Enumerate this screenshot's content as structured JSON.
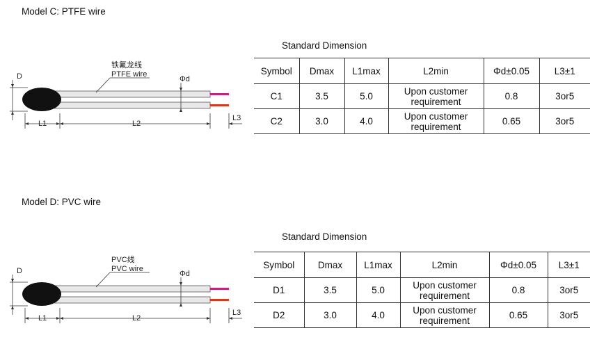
{
  "sections": [
    {
      "title": "Model C: PTFE wire",
      "diagram": {
        "dimension_d": "D",
        "wire_label_cn": "铁氟龙线",
        "wire_label_en": "PTFE wire",
        "phi_d": "Φd",
        "l1": "L1",
        "l2": "L2",
        "l3": "L3"
      },
      "table": {
        "caption": "Standard Dimension",
        "header": [
          "Symbol",
          "Dmax",
          "L1max",
          "L2min",
          "Φd±0.05",
          "L3±1"
        ],
        "rows": [
          [
            "C1",
            "3.5",
            "5.0",
            "Upon customer requirement",
            "0.8",
            "3or5"
          ],
          [
            "C2",
            "3.0",
            "4.0",
            "Upon customer requirement",
            "0.65",
            "3or5"
          ]
        ]
      }
    },
    {
      "title": "Model D: PVC wire",
      "diagram": {
        "dimension_d": "D",
        "wire_label_cn": "PVC线",
        "wire_label_en": "PVC wire",
        "phi_d": "Φd",
        "l1": "L1",
        "l2": "L2",
        "l3": "L3"
      },
      "table": {
        "caption": "Standard Dimension",
        "header": [
          "Symbol",
          "Dmax",
          "L1max",
          "L2min",
          "Φd±0.05",
          "L3±1"
        ],
        "rows": [
          [
            "D1",
            "3.5",
            "5.0",
            "Upon customer requirement",
            "0.8",
            "3or5"
          ],
          [
            "D2",
            "3.0",
            "4.0",
            "Upon customer requirement",
            "0.65",
            "3or5"
          ]
        ]
      }
    }
  ]
}
